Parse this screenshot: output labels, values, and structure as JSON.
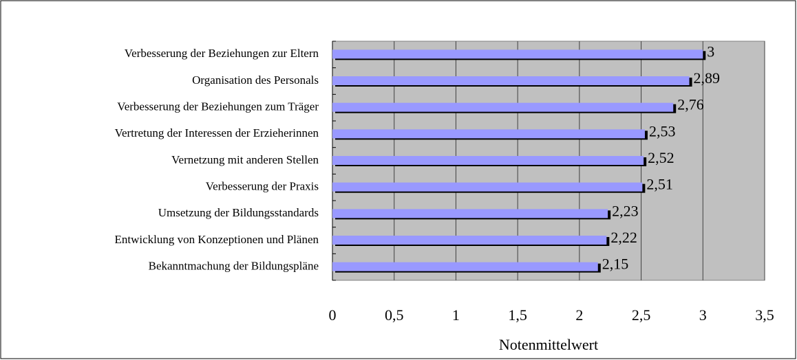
{
  "chart_data": {
    "type": "bar",
    "orientation": "horizontal",
    "categories": [
      "Verbesserung der Beziehungen zur Eltern",
      "Organisation des Personals",
      "Verbesserung der Beziehungen zum Träger",
      "Vertretung der Interessen der Erzieherinnen",
      "Vernetzung mit anderen Stellen",
      "Verbesserung der Praxis",
      "Umsetzung der Bildungsstandards",
      "Entwicklung von Konzeptionen und Plänen",
      "Bekanntmachung der Bildungspläne"
    ],
    "values": [
      3,
      2.89,
      2.76,
      2.53,
      2.52,
      2.51,
      2.23,
      2.22,
      2.15
    ],
    "value_labels": [
      "3",
      "2,89",
      "2,76",
      "2,53",
      "2,52",
      "2,51",
      "2,23",
      "2,22",
      "2,15"
    ],
    "color": "#9999ff",
    "xlabel": "Notenmittelwert",
    "xlim": [
      0,
      3.5
    ],
    "xticks": [
      0,
      {
        "value": 0.5,
        "label": "0,5"
      },
      1,
      {
        "value": 1.5,
        "label": "1,5"
      },
      2,
      {
        "value": 2.5,
        "label": "2,5"
      },
      3,
      {
        "value": 3.5,
        "label": "3,5"
      }
    ],
    "grid": true
  }
}
